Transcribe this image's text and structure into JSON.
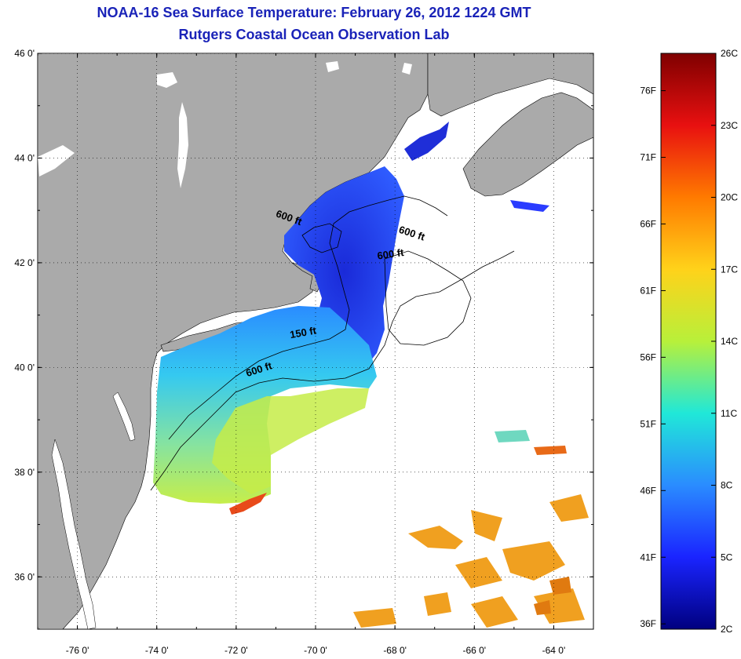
{
  "header": {
    "title": "NOAA-16 Sea Surface Temperature:  February 26, 2012 1224 GMT",
    "subtitle": "Rutgers Coastal Ocean Observation Lab"
  },
  "map": {
    "latitudes": [
      "46 0'",
      "44 0'",
      "42 0'",
      "40 0'",
      "38 0'",
      "36 0'"
    ],
    "longitudes": [
      "-76 0'",
      "-74 0'",
      "-72 0'",
      "-70 0'",
      "-68 0'",
      "-66 0'",
      "-64 0'"
    ],
    "contour_labels": [
      {
        "text": "600 ft",
        "lon": -70.7,
        "lat": 42.8
      },
      {
        "text": "600 ft",
        "lon": -67.6,
        "lat": 42.5
      },
      {
        "text": "600 ft",
        "lon": -68.1,
        "lat": 42.1
      },
      {
        "text": "150 ft",
        "lon": -70.3,
        "lat": 40.6
      },
      {
        "text": "600 ft",
        "lon": -71.4,
        "lat": 39.9
      }
    ],
    "colors": {
      "land": "#aaaaaa",
      "ocean": "#ffffff",
      "grid": "#000000"
    }
  },
  "colorbar": {
    "celsius_labels": [
      "26C",
      "23C",
      "20C",
      "17C",
      "14C",
      "11C",
      "8C",
      "5C",
      "2C"
    ],
    "fahrenheit_labels": [
      "76F",
      "71F",
      "66F",
      "61F",
      "56F",
      "51F",
      "46F",
      "41F",
      "36F"
    ],
    "stops": [
      "#7f0000",
      "#e81010",
      "#ff7a00",
      "#ffd21a",
      "#b8f03a",
      "#20e8d8",
      "#2a8cff",
      "#1a24ff",
      "#00007f"
    ]
  }
}
